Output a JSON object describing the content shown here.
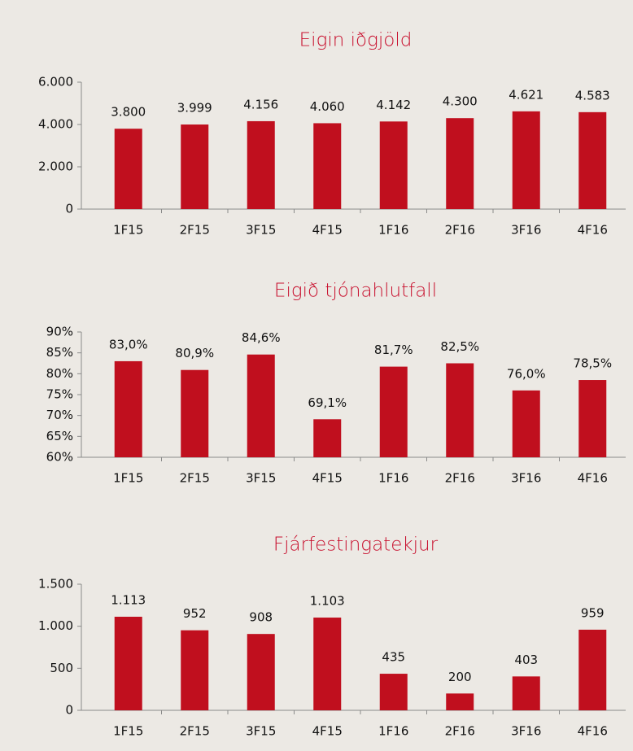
{
  "chart_data": [
    {
      "type": "bar",
      "title": "Eigin iðgjöld",
      "categories": [
        "1F15",
        "2F15",
        "3F15",
        "4F15",
        "1F16",
        "2F16",
        "3F16",
        "4F16"
      ],
      "values": [
        3800,
        3999,
        4156,
        4060,
        4142,
        4300,
        4621,
        4583
      ],
      "value_labels": [
        "3.800",
        "3.999",
        "4.156",
        "4.060",
        "4.142",
        "4.300",
        "4.621",
        "4.583"
      ],
      "color": "#c00f1e",
      "ylim": [
        0,
        6000
      ],
      "yticks": [
        0,
        {
          "value": 2000,
          "label": "2.000"
        },
        {
          "value": 4000,
          "label": "4.000"
        },
        {
          "value": 6000,
          "label": "6.000"
        }
      ]
    },
    {
      "type": "bar",
      "title": "Eigið tjónahlutfall",
      "categories": [
        "1F15",
        "2F15",
        "3F15",
        "4F15",
        "1F16",
        "2F16",
        "3F16",
        "4F16"
      ],
      "values": [
        83.0,
        80.9,
        84.6,
        69.1,
        81.7,
        82.5,
        76.0,
        78.5
      ],
      "value_labels": [
        "83,0%",
        "80,9%",
        "84,6%",
        "69,1%",
        "81,7%",
        "82,5%",
        "76,0%",
        "78,5%"
      ],
      "color": "#c00f1e",
      "ylim": [
        60,
        90
      ],
      "yticks": [
        {
          "value": 60,
          "label": "60%"
        },
        {
          "value": 65,
          "label": "65%"
        },
        {
          "value": 70,
          "label": "70%"
        },
        {
          "value": 75,
          "label": "75%"
        },
        {
          "value": 80,
          "label": "80%"
        },
        {
          "value": 85,
          "label": "85%"
        },
        {
          "value": 90,
          "label": "90%"
        }
      ]
    },
    {
      "type": "bar",
      "title": "Fjárfestingatekjur",
      "categories": [
        "1F15",
        "2F15",
        "3F15",
        "4F15",
        "1F16",
        "2F16",
        "3F16",
        "4F16"
      ],
      "values": [
        1113,
        952,
        908,
        1103,
        435,
        200,
        403,
        959
      ],
      "value_labels": [
        "1.113",
        "952",
        "908",
        "1.103",
        "435",
        "200",
        "403",
        "959"
      ],
      "color": "#c00f1e",
      "ylim": [
        0,
        1500
      ],
      "yticks": [
        0,
        500,
        {
          "value": 1000,
          "label": "1.000"
        },
        {
          "value": 1500,
          "label": "1.500"
        }
      ]
    }
  ]
}
